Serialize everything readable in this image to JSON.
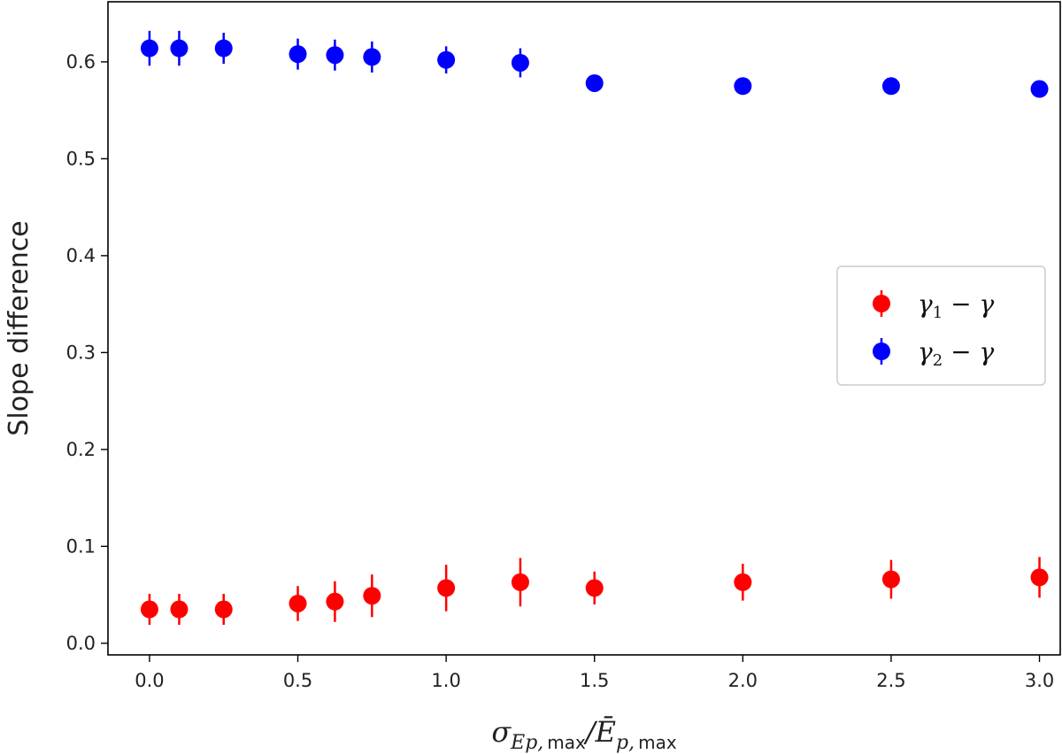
{
  "chart_data": {
    "type": "scatter",
    "title": "",
    "ylabel": "Slope difference",
    "xlabel": {
      "sigma": "σ",
      "sub1": "Ep,",
      "sub2": "max",
      "slash": "/",
      "ebar": "Ē",
      "sub3": "p,",
      "sub4": "max"
    },
    "xlim": [
      -0.14,
      3.07
    ],
    "ylim": [
      -0.012,
      0.662
    ],
    "xticks": [
      "0.0",
      "0.5",
      "1.0",
      "1.5",
      "2.0",
      "2.5",
      "3.0"
    ],
    "yticks": [
      "0.0",
      "0.1",
      "0.2",
      "0.3",
      "0.4",
      "0.5",
      "0.6"
    ],
    "legend_position": "center-right",
    "series": [
      {
        "name": "γ1 − γ",
        "legend": {
          "base": "γ",
          "sub": "1",
          "rest": " − γ"
        },
        "color": "#ff0000",
        "x": [
          0.0,
          0.1,
          0.25,
          0.5,
          0.625,
          0.75,
          1.0,
          1.25,
          1.5,
          2.0,
          2.5,
          3.0
        ],
        "y": [
          0.035,
          0.035,
          0.035,
          0.041,
          0.043,
          0.049,
          0.057,
          0.063,
          0.057,
          0.063,
          0.066,
          0.068
        ],
        "yerr": [
          0.016,
          0.016,
          0.016,
          0.018,
          0.021,
          0.022,
          0.024,
          0.025,
          0.017,
          0.019,
          0.02,
          0.021
        ]
      },
      {
        "name": "γ2 − γ",
        "legend": {
          "base": "γ",
          "sub": "2",
          "rest": " − γ"
        },
        "color": "#0000ff",
        "x": [
          0.0,
          0.1,
          0.25,
          0.5,
          0.625,
          0.75,
          1.0,
          1.25,
          1.5,
          2.0,
          2.5,
          3.0
        ],
        "y": [
          0.614,
          0.614,
          0.614,
          0.608,
          0.607,
          0.605,
          0.602,
          0.599,
          0.578,
          0.575,
          0.575,
          0.572
        ],
        "yerr": [
          0.018,
          0.018,
          0.016,
          0.016,
          0.016,
          0.016,
          0.014,
          0.015,
          0.0,
          0.0,
          0.0,
          0.0
        ]
      }
    ]
  }
}
